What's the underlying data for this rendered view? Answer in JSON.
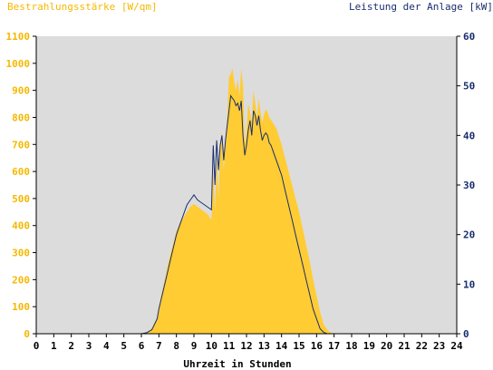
{
  "chart_data": {
    "type": "area",
    "left_axis_title": "Bestrahlungsstärke [W/qm]",
    "right_axis_title": "Leistung der Anlage [kW]",
    "xlabel": "Uhrzeit in Stunden",
    "xlim": [
      0,
      24
    ],
    "ylim_left": [
      0,
      1100
    ],
    "ylim_right": [
      0,
      60
    ],
    "x_ticks": [
      "0",
      "1",
      "2",
      "3",
      "4",
      "5",
      "6",
      "7",
      "8",
      "9",
      "10",
      "11",
      "12",
      "13",
      "14",
      "15",
      "16",
      "17",
      "18",
      "19",
      "20",
      "21",
      "22",
      "23",
      "24"
    ],
    "y_ticks_left": [
      "0",
      "100",
      "200",
      "300",
      "400",
      "500",
      "600",
      "700",
      "800",
      "900",
      "1000",
      "1100"
    ],
    "y_ticks_right": [
      "0",
      "10",
      "20",
      "30",
      "40",
      "50",
      "60"
    ],
    "grid": false,
    "colors": {
      "plot_background": "#dcdcdc",
      "irradiance_fill": "#ffcc33",
      "power_line": "#1a2e6e",
      "left_axis_text": "#f5b800",
      "right_axis_text": "#1a2e6e",
      "axis_text": "#000000"
    },
    "series": [
      {
        "axis": "left",
        "style": "area",
        "x": [
          6.0,
          6.3,
          6.6,
          6.9,
          7.0,
          7.2,
          7.4,
          7.6,
          7.8,
          8.0,
          8.2,
          8.4,
          8.6,
          8.8,
          9.0,
          9.2,
          9.4,
          9.6,
          9.8,
          10.0,
          10.1,
          10.2,
          10.3,
          10.4,
          10.5,
          10.6,
          10.7,
          10.8,
          10.9,
          11.0,
          11.1,
          11.2,
          11.3,
          11.4,
          11.5,
          11.6,
          11.7,
          11.8,
          11.9,
          12.0,
          12.1,
          12.2,
          12.3,
          12.4,
          12.5,
          12.6,
          12.7,
          12.8,
          12.9,
          13.0,
          13.1,
          13.2,
          13.3,
          13.4,
          13.5,
          13.6,
          13.7,
          13.8,
          13.9,
          14.0,
          14.2,
          14.4,
          14.6,
          14.8,
          15.0,
          15.2,
          15.4,
          15.6,
          15.8,
          16.0,
          16.2,
          16.4,
          16.6,
          16.8,
          17.0,
          17.2,
          17.4,
          17.6,
          17.8,
          18.0,
          18.2,
          18.5
        ],
        "values": [
          0,
          5,
          20,
          60,
          100,
          160,
          220,
          280,
          330,
          380,
          410,
          430,
          450,
          470,
          480,
          470,
          460,
          450,
          440,
          420,
          600,
          450,
          650,
          500,
          700,
          750,
          600,
          720,
          800,
          950,
          960,
          980,
          930,
          900,
          940,
          880,
          980,
          920,
          700,
          750,
          850,
          820,
          780,
          900,
          850,
          800,
          870,
          820,
          780,
          810,
          830,
          820,
          800,
          790,
          780,
          770,
          760,
          740,
          720,
          700,
          650,
          600,
          550,
          500,
          450,
          390,
          330,
          270,
          200,
          140,
          80,
          35,
          15,
          5,
          0,
          0,
          0,
          0,
          0,
          0,
          0,
          0
        ]
      },
      {
        "axis": "right",
        "style": "line",
        "x": [
          6.0,
          6.3,
          6.6,
          6.9,
          7.0,
          7.2,
          7.4,
          7.6,
          7.8,
          8.0,
          8.2,
          8.4,
          8.6,
          8.8,
          9.0,
          9.2,
          9.4,
          9.6,
          9.8,
          10.0,
          10.1,
          10.2,
          10.3,
          10.4,
          10.5,
          10.6,
          10.7,
          10.8,
          10.9,
          11.0,
          11.1,
          11.2,
          11.3,
          11.4,
          11.5,
          11.6,
          11.7,
          11.8,
          11.9,
          12.0,
          12.1,
          12.2,
          12.3,
          12.4,
          12.5,
          12.6,
          12.7,
          12.8,
          12.9,
          13.0,
          13.1,
          13.2,
          13.3,
          13.4,
          13.5,
          13.6,
          13.7,
          13.8,
          13.9,
          14.0,
          14.2,
          14.4,
          14.6,
          14.8,
          15.0,
          15.2,
          15.4,
          15.6,
          15.8,
          16.0,
          16.2,
          16.4,
          16.6,
          16.8,
          17.0,
          17.2,
          17.4,
          17.6,
          17.8,
          18.0,
          18.2,
          18.5
        ],
        "values": [
          0,
          0.2,
          0.8,
          3,
          5,
          8,
          11,
          14,
          17,
          20,
          22,
          24,
          26,
          27,
          28,
          27,
          26.5,
          26,
          25.5,
          25,
          38,
          30,
          39,
          33,
          38,
          40,
          35,
          39,
          42,
          45,
          48,
          47.5,
          47,
          46,
          46.5,
          45,
          47,
          40,
          36,
          38,
          41,
          43,
          40,
          45,
          44,
          42,
          44,
          41,
          39,
          40,
          40.5,
          40,
          38.5,
          38,
          37,
          36,
          35,
          34,
          33,
          32,
          29,
          26,
          23,
          20,
          17,
          14,
          11,
          8,
          5,
          3,
          1,
          0.3,
          0,
          0,
          0,
          0,
          0,
          0,
          0,
          0,
          0,
          0
        ]
      }
    ]
  }
}
